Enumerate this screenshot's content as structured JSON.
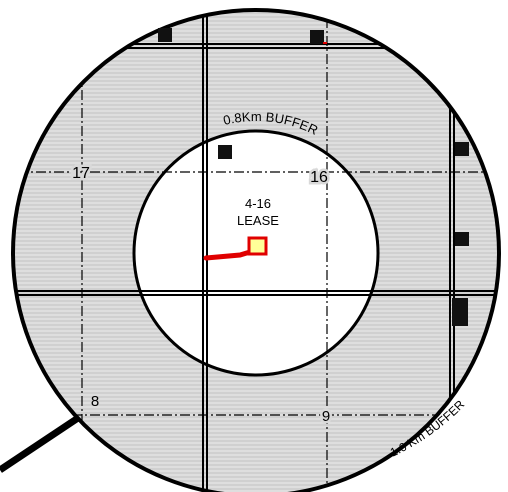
{
  "map": {
    "buffers": {
      "inner_label": "0.8Km BUFFER",
      "outer_label": "1.6 Km BUFFER"
    },
    "sections": {
      "s17": "17",
      "s16": "16",
      "s8": "8",
      "s9": "9"
    },
    "lease": {
      "name": "4-16",
      "type": "LEASE"
    },
    "colors": {
      "outer_ring_fill": "#d7d7d7",
      "inner_fill": "#ffffff",
      "lease_fill": "#ffff99",
      "lease_outline": "#e00000",
      "pipeline": "#e00000",
      "wells": "#111111"
    }
  }
}
